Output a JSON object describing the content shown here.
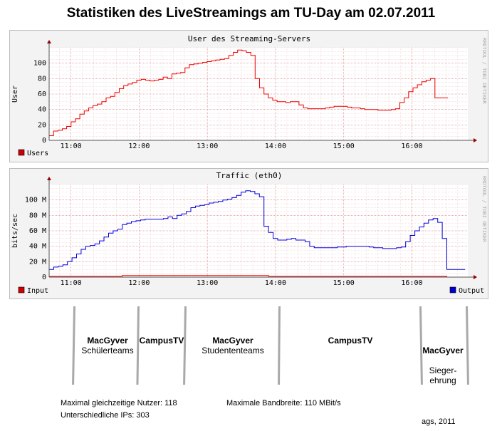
{
  "title": "Statistiken des LiveStreamings am TU-Day am 02.07.2011",
  "charts": [
    {
      "id": "users",
      "type": "line",
      "title": "User des Streaming-Servers",
      "ylabel": "User",
      "ylim": [
        0,
        120
      ],
      "yticks": [
        0,
        20,
        40,
        60,
        80,
        100
      ],
      "xlim": [
        10.68,
        16.82
      ],
      "xticks": [
        {
          "v": 11,
          "label": "11:00"
        },
        {
          "v": 12,
          "label": "12:00"
        },
        {
          "v": 13,
          "label": "13:00"
        },
        {
          "v": 14,
          "label": "14:00"
        },
        {
          "v": 15,
          "label": "15:00"
        },
        {
          "v": 16,
          "label": "16:00"
        }
      ],
      "side_text": "RRDTOOL / TOBI OETIKER",
      "legend": [
        {
          "name": "Users",
          "color": "#cc0000"
        }
      ],
      "series": [
        {
          "name": "Users",
          "color": "#ee0000",
          "x_end": 16.53,
          "values": [
            6,
            12,
            13,
            15,
            18,
            24,
            28,
            34,
            38,
            42,
            45,
            47,
            50,
            55,
            57,
            62,
            67,
            71,
            73,
            75,
            78,
            79,
            78,
            77,
            78,
            79,
            82,
            80,
            86,
            87,
            88,
            94,
            98,
            99,
            100,
            101,
            102,
            103,
            104,
            105,
            106,
            110,
            114,
            117,
            116,
            114,
            110,
            80,
            68,
            60,
            55,
            52,
            50,
            50,
            49,
            50,
            50,
            46,
            42,
            41,
            41,
            41,
            41,
            42,
            43,
            44,
            44,
            44,
            43,
            42,
            42,
            41,
            40,
            40,
            40,
            39,
            39,
            39,
            40,
            41,
            49,
            55,
            63,
            68,
            72,
            76,
            78,
            80,
            55,
            55,
            55
          ]
        }
      ]
    },
    {
      "id": "traffic",
      "type": "line",
      "title": "Traffic (eth0)",
      "ylabel": "bits/sec",
      "ylim": [
        0,
        120
      ],
      "yticks": [
        0,
        20,
        40,
        60,
        80,
        100
      ],
      "ytick_labels": [
        "0",
        "20 M",
        "40 M",
        "60 M",
        "80 M",
        "100 M"
      ],
      "xlim": [
        10.68,
        16.82
      ],
      "xticks": [
        {
          "v": 11,
          "label": "11:00"
        },
        {
          "v": 12,
          "label": "12:00"
        },
        {
          "v": 13,
          "label": "13:00"
        },
        {
          "v": 14,
          "label": "14:00"
        },
        {
          "v": 15,
          "label": "15:00"
        },
        {
          "v": 16,
          "label": "16:00"
        }
      ],
      "side_text": "RRDTOOL / TOBI OETIKER",
      "legend": [
        {
          "name": "Input",
          "color": "#cc0000"
        },
        {
          "name": "Output",
          "color": "#0000cc"
        }
      ],
      "series": [
        {
          "name": "Output",
          "color": "#0000dd",
          "x_end": 16.78,
          "values": [
            10,
            13,
            14,
            16,
            20,
            25,
            30,
            36,
            40,
            41,
            43,
            47,
            52,
            57,
            60,
            62,
            68,
            70,
            72,
            73,
            74,
            75,
            75,
            75,
            75,
            76,
            78,
            76,
            80,
            82,
            85,
            90,
            92,
            93,
            94,
            96,
            97,
            98,
            100,
            101,
            103,
            106,
            110,
            112,
            111,
            108,
            104,
            66,
            58,
            50,
            48,
            48,
            49,
            50,
            48,
            48,
            46,
            40,
            38,
            38,
            38,
            38,
            38,
            39,
            39,
            40,
            40,
            40,
            40,
            40,
            39,
            38,
            38,
            37,
            37,
            37,
            38,
            39,
            46,
            54,
            60,
            65,
            70,
            74,
            76,
            71,
            50,
            10,
            10,
            10,
            10
          ]
        },
        {
          "name": "Input",
          "color": "#ee0000",
          "x_end": 16.78,
          "values": [
            1,
            1,
            1,
            1,
            1,
            1,
            1,
            1,
            1,
            1,
            1,
            1,
            1,
            1,
            1,
            1,
            2,
            2,
            2,
            2,
            2,
            2,
            2,
            2,
            2,
            2,
            2,
            2,
            2,
            2,
            2,
            2,
            2,
            2,
            2,
            2,
            2,
            2,
            2,
            2,
            2,
            2,
            2,
            2,
            2,
            2,
            2,
            2,
            1,
            1,
            1,
            1,
            1,
            1,
            1,
            1,
            1,
            1,
            1,
            1,
            1,
            1,
            1,
            1,
            1,
            1,
            1,
            1,
            1,
            1,
            1,
            1,
            1,
            1,
            1,
            1,
            1,
            1,
            1,
            1,
            1,
            1,
            1,
            1,
            1,
            1,
            1,
            0,
            0,
            0,
            0
          ]
        }
      ]
    }
  ],
  "segments": [
    {
      "bold": "MacGyver",
      "text": "Schülerteams"
    },
    {
      "bold": "CampusTV",
      "text": ""
    },
    {
      "bold": "MacGyver",
      "text": "Studententeams"
    },
    {
      "bold": "CampusTV",
      "text": ""
    },
    {
      "bold": "MacGyver",
      "text": "Sieger-\nehrung"
    }
  ],
  "stats": {
    "max_users": "Maximal gleichzeitige Nutzer: 118",
    "unique_ips": "Unterschiedliche IPs: 303",
    "max_bandwidth": "Maximale Bandbreite: 110 MBit/s",
    "credit": "ags, 2011"
  }
}
